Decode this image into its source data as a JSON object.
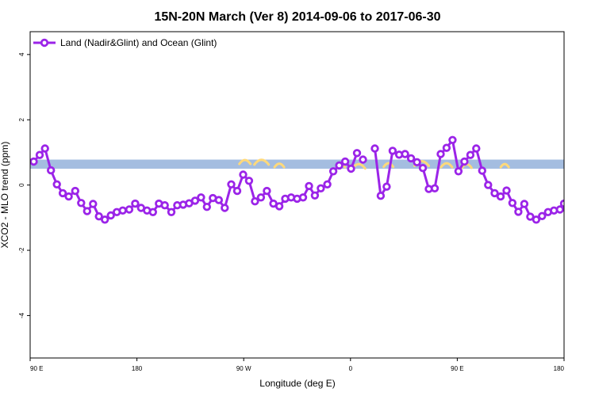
{
  "chart_data": {
    "type": "line",
    "title": "15N-20N March (Ver 8)   2014-09-06 to 2017-06-30",
    "xlabel": "Longitude (deg E)",
    "ylabel": "XCO2 - MLO trend (ppm)",
    "xlim": [
      90,
      450
    ],
    "ylim": [
      -5.3,
      4.7
    ],
    "x_ticks": [
      {
        "value": 90,
        "label": "90 E"
      },
      {
        "value": 180,
        "label": "180"
      },
      {
        "value": 270,
        "label": "90 W"
      },
      {
        "value": 360,
        "label": "0"
      },
      {
        "value": 450,
        "label": "90 E"
      },
      {
        "value": 540,
        "label": "180"
      }
    ],
    "y_ticks": [
      {
        "value": 4,
        "label": "4"
      },
      {
        "value": 2,
        "label": "2"
      },
      {
        "value": 0,
        "label": "0"
      },
      {
        "value": -2,
        "label": "-2"
      },
      {
        "value": -4,
        "label": "-4"
      }
    ],
    "x_display_max": 540,
    "grid": false,
    "legend_position": "top-left",
    "series": [
      {
        "name": "Land (Nadir&Glint) and Ocean (Glint)",
        "color": "#9b24e8",
        "marker": "open-circle",
        "segments": [
          {
            "x": [
              93.0,
              98.0,
              102.5,
              107.5,
              112.5,
              117.5,
              122.5,
              128.0,
              133.0,
              138.0,
              143.0,
              148.0,
              153.0,
              158.0,
              163.0,
              168.0,
              173.5,
              178.5,
              183.5,
              188.5,
              193.5,
              198.5,
              203.5,
              209.0,
              214.0,
              219.0,
              224.0,
              229.0,
              234.0,
              239.0,
              244.0,
              249.0,
              254.0,
              259.5,
              264.5,
              269.5,
              274.5,
              279.5,
              284.5,
              289.5,
              295.0,
              300.0,
              305.0,
              310.0,
              315.0,
              320.0,
              325.0,
              330.0,
              335.0,
              340.5,
              345.5,
              350.5,
              355.5,
              360.5,
              365.5
            ],
            "y": [
              0.72,
              0.92,
              1.12,
              0.45,
              0.02,
              -0.25,
              -0.35,
              -0.18,
              -0.55,
              -0.8,
              -0.58,
              -0.96,
              -1.06,
              -0.93,
              -0.83,
              -0.78,
              -0.75,
              -0.57,
              -0.7,
              -0.78,
              -0.83,
              -0.57,
              -0.62,
              -0.83,
              -0.62,
              -0.6,
              -0.56,
              -0.48,
              -0.38,
              -0.67,
              -0.4,
              -0.46,
              -0.7,
              0.02,
              -0.18,
              0.32,
              0.13,
              -0.5,
              -0.38,
              -0.18,
              -0.57,
              -0.65,
              -0.42,
              -0.38,
              -0.42,
              -0.38,
              -0.03,
              -0.32,
              -0.1,
              0.02,
              0.42,
              0.6,
              0.72,
              0.5,
              0.98
            ]
          },
          {
            "x": [
              370.5
            ],
            "y": [
              0.78
            ]
          },
          {
            "x": [
              380.5,
              385.5,
              390.5,
              395.5,
              401.0,
              406.0,
              411.0,
              416.0,
              421.0,
              426.0,
              431.0,
              436.0,
              441.0,
              446.0,
              451.0,
              456.0,
              461.0,
              466.0,
              471.0,
              476.0,
              481.5,
              486.5,
              491.5,
              496.5,
              501.5,
              506.5,
              511.5,
              516.5,
              521.5,
              526.5,
              531.5,
              536.5,
              540.0
            ],
            "y": [
              1.12,
              -0.33,
              -0.05,
              1.05,
              0.93,
              0.95,
              0.82,
              0.7,
              0.52,
              -0.12,
              -0.1,
              0.95,
              1.14,
              1.38,
              0.42,
              0.72,
              0.92,
              1.12,
              0.44,
              0.0,
              -0.25,
              -0.35,
              -0.17,
              -0.55,
              -0.82,
              -0.58,
              -0.97,
              -1.06,
              -0.95,
              -0.83,
              -0.78,
              -0.75,
              -0.57
            ]
          }
        ]
      }
    ],
    "background_band": {
      "color": "#a4bde0",
      "ymin": 0.5,
      "ymax": 0.78
    },
    "background_swirl_color": "#ffd97a"
  }
}
